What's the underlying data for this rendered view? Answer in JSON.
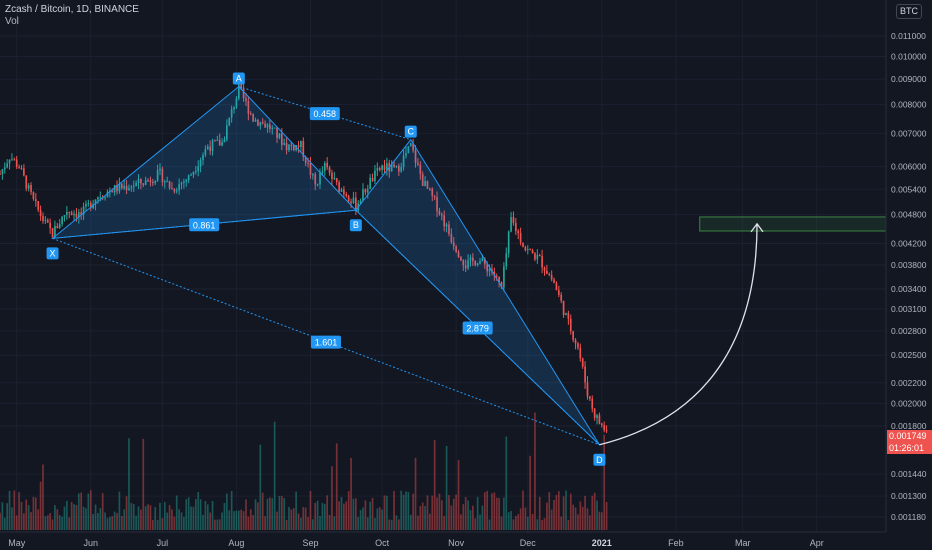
{
  "header": {
    "title": "Zcash / Bitcoin, 1D, BINANCE",
    "volume_label": "Vol"
  },
  "currency_badge": "BTC",
  "last_price": "0.001749",
  "countdown": "01:26:01",
  "colors": {
    "background": "#131722",
    "up": "#26a69a",
    "down": "#ef5350",
    "pattern": "#2196f3",
    "target_zone": "#4caf50"
  },
  "chart_data": {
    "type": "candlestick",
    "title": "Zcash / Bitcoin, 1D, BINANCE",
    "y_scale": "log",
    "ylim": [
      0.00113,
      0.0122
    ],
    "y_ticks": [
      "0.011000",
      "0.010000",
      "0.009000",
      "0.008000",
      "0.007000",
      "0.006000",
      "0.005400",
      "0.004800",
      "0.004200",
      "0.003800",
      "0.003400",
      "0.003100",
      "0.002800",
      "0.002500",
      "0.002200",
      "0.002000",
      "0.001800",
      "0.001440",
      "0.001300",
      "0.001180"
    ],
    "x_ticks": [
      "May",
      "Jun",
      "Jul",
      "Aug",
      "Sep",
      "Oct",
      "Nov",
      "Dec",
      "2021",
      "Feb",
      "Mar",
      "Apr"
    ],
    "x_range": [
      "2020-04-24",
      "2021-04-30"
    ],
    "harmonic_points": [
      {
        "label": "X",
        "date": "2020-05-16",
        "price": 0.0043
      },
      {
        "label": "A",
        "date": "2020-08-02",
        "price": 0.0087
      },
      {
        "label": "B",
        "date": "2020-09-20",
        "price": 0.0049
      },
      {
        "label": "C",
        "date": "2020-10-13",
        "price": 0.0068
      },
      {
        "label": "D",
        "date": "2020-12-31",
        "price": 0.00165
      }
    ],
    "ratios": [
      {
        "label": "0.861",
        "from": "X",
        "to": "B"
      },
      {
        "label": "0.458",
        "from": "A",
        "to": "C"
      },
      {
        "label": "2.879",
        "from": "B",
        "to": "D"
      },
      {
        "label": "1.601",
        "from": "X",
        "to": "D"
      }
    ],
    "target_zone": {
      "from_date": "2021-02-11",
      "price_low": 0.00445,
      "price_high": 0.00475
    },
    "projection": {
      "from": {
        "date": "2020-12-31",
        "price": 0.00165
      },
      "to": {
        "date": "2021-03-07",
        "price": 0.0046
      }
    },
    "price_path": [
      [
        "2020-04-24",
        0.0058
      ],
      [
        "2020-04-28",
        0.0063
      ],
      [
        "2020-05-02",
        0.006
      ],
      [
        "2020-05-08",
        0.0051
      ],
      [
        "2020-05-13",
        0.0046
      ],
      [
        "2020-05-16",
        0.0044
      ],
      [
        "2020-05-22",
        0.0049
      ],
      [
        "2020-05-28",
        0.0048
      ],
      [
        "2020-06-03",
        0.0052
      ],
      [
        "2020-06-10",
        0.0054
      ],
      [
        "2020-06-18",
        0.0055
      ],
      [
        "2020-06-24",
        0.0056
      ],
      [
        "2020-06-30",
        0.0058
      ],
      [
        "2020-07-05",
        0.0054
      ],
      [
        "2020-07-12",
        0.0057
      ],
      [
        "2020-07-20",
        0.0066
      ],
      [
        "2020-07-26",
        0.0067
      ],
      [
        "2020-08-02",
        0.0086
      ],
      [
        "2020-08-08",
        0.0075
      ],
      [
        "2020-08-15",
        0.0072
      ],
      [
        "2020-08-22",
        0.0066
      ],
      [
        "2020-08-28",
        0.0066
      ],
      [
        "2020-09-03",
        0.0055
      ],
      [
        "2020-09-07",
        0.006
      ],
      [
        "2020-09-12",
        0.0055
      ],
      [
        "2020-09-16",
        0.0053
      ],
      [
        "2020-09-20",
        0.005
      ],
      [
        "2020-09-26",
        0.0056
      ],
      [
        "2020-10-01",
        0.006
      ],
      [
        "2020-10-07",
        0.0059
      ],
      [
        "2020-10-13",
        0.0066
      ],
      [
        "2020-10-18",
        0.0056
      ],
      [
        "2020-10-24",
        0.005
      ],
      [
        "2020-10-30",
        0.0043
      ],
      [
        "2020-11-05",
        0.0038
      ],
      [
        "2020-11-10",
        0.0039
      ],
      [
        "2020-11-16",
        0.0037
      ],
      [
        "2020-11-20",
        0.0034
      ],
      [
        "2020-11-24",
        0.0047
      ],
      [
        "2020-11-30",
        0.0041
      ],
      [
        "2020-12-06",
        0.0039
      ],
      [
        "2020-12-12",
        0.0035
      ],
      [
        "2020-12-18",
        0.0029
      ],
      [
        "2020-12-22",
        0.0026
      ],
      [
        "2020-12-26",
        0.0021
      ],
      [
        "2020-12-29",
        0.0019
      ],
      [
        "2021-01-01",
        0.0018
      ],
      [
        "2021-01-03",
        0.00175
      ]
    ]
  }
}
